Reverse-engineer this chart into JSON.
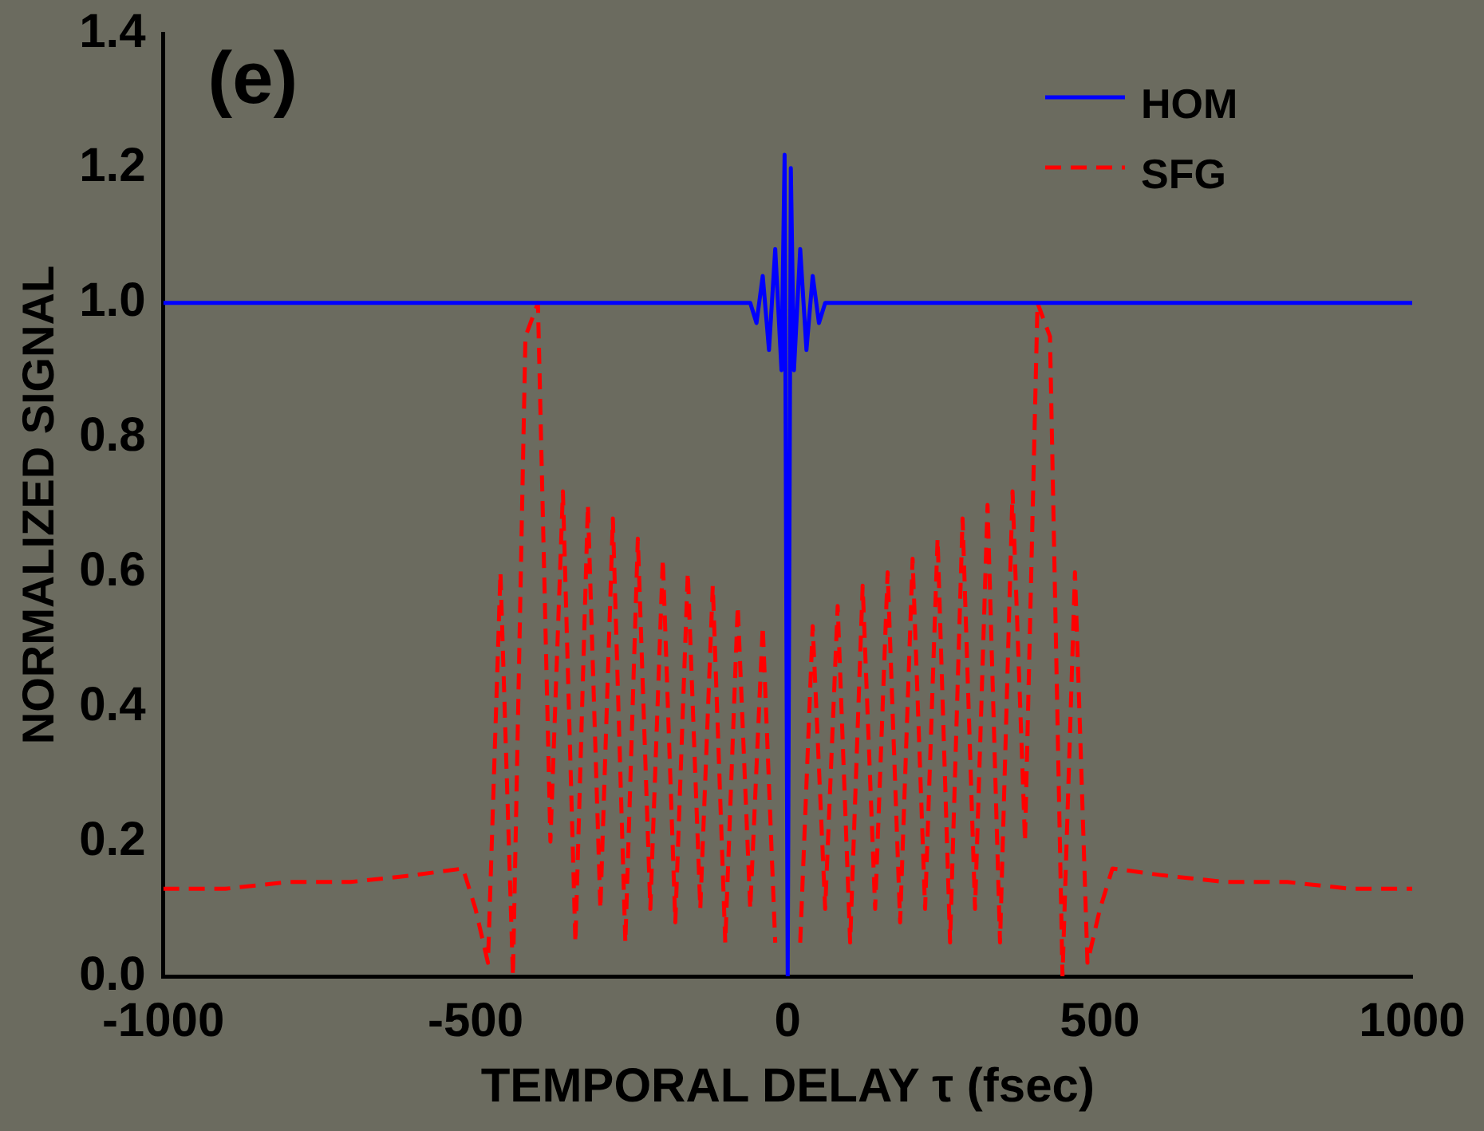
{
  "chart_data": {
    "type": "line",
    "title": "(e)",
    "xlabel": "TEMPORAL DELAY τ (fsec)",
    "ylabel": "NORMALIZED SIGNAL",
    "xlim": [
      -1000,
      1000
    ],
    "xticks": [
      -1000,
      -500,
      0,
      500,
      1000
    ],
    "ylim": [
      0,
      1.4
    ],
    "yticks": [
      {
        "value": 0,
        "label": "0.0"
      },
      0.2,
      0.4,
      0.6,
      0.8,
      {
        "value": 1,
        "label": "1.0"
      },
      1.2,
      1.4
    ],
    "grid": false,
    "legend": "top right",
    "marker": "none",
    "series": [
      {
        "name": "HOM",
        "color": "#0000ff",
        "line_style": "solid",
        "x": [
          -1000,
          -100,
          -60,
          -50,
          -40,
          -30,
          -20,
          -10,
          -5,
          0,
          5,
          10,
          20,
          30,
          40,
          50,
          60,
          100,
          1000
        ],
        "values": [
          1.0,
          1.0,
          1.0,
          0.97,
          1.04,
          0.93,
          1.08,
          0.9,
          1.22,
          0.0,
          1.2,
          0.9,
          1.08,
          0.93,
          1.04,
          0.97,
          1.0,
          1.0,
          1.0
        ]
      },
      {
        "name": "SFG",
        "color": "#ff0000",
        "line_style": "dashed",
        "x": [
          -1000,
          -900,
          -800,
          -700,
          -600,
          -520,
          -500,
          -480,
          -460,
          -440,
          -420,
          -400,
          -380,
          -360,
          -340,
          -320,
          -300,
          -280,
          -260,
          -240,
          -220,
          -200,
          -180,
          -160,
          -140,
          -120,
          -100,
          -80,
          -60,
          -40,
          -20,
          0,
          20,
          40,
          60,
          80,
          100,
          120,
          140,
          160,
          180,
          200,
          220,
          240,
          260,
          280,
          300,
          320,
          340,
          360,
          380,
          400,
          420,
          440,
          460,
          480,
          500,
          520,
          600,
          700,
          800,
          900,
          1000
        ],
        "values": [
          0.13,
          0.13,
          0.14,
          0.14,
          0.15,
          0.16,
          0.1,
          0.02,
          0.6,
          0.0,
          0.95,
          1.0,
          0.2,
          0.72,
          0.05,
          0.7,
          0.1,
          0.68,
          0.05,
          0.65,
          0.1,
          0.62,
          0.08,
          0.6,
          0.1,
          0.58,
          0.05,
          0.55,
          0.1,
          0.52,
          0.05,
          null,
          0.05,
          0.52,
          0.1,
          0.55,
          0.05,
          0.58,
          0.1,
          0.6,
          0.08,
          0.62,
          0.1,
          0.65,
          0.05,
          0.68,
          0.1,
          0.7,
          0.05,
          0.72,
          0.2,
          1.0,
          0.95,
          0.0,
          0.6,
          0.02,
          0.1,
          0.16,
          0.15,
          0.14,
          0.14,
          0.13,
          0.13
        ]
      }
    ]
  }
}
